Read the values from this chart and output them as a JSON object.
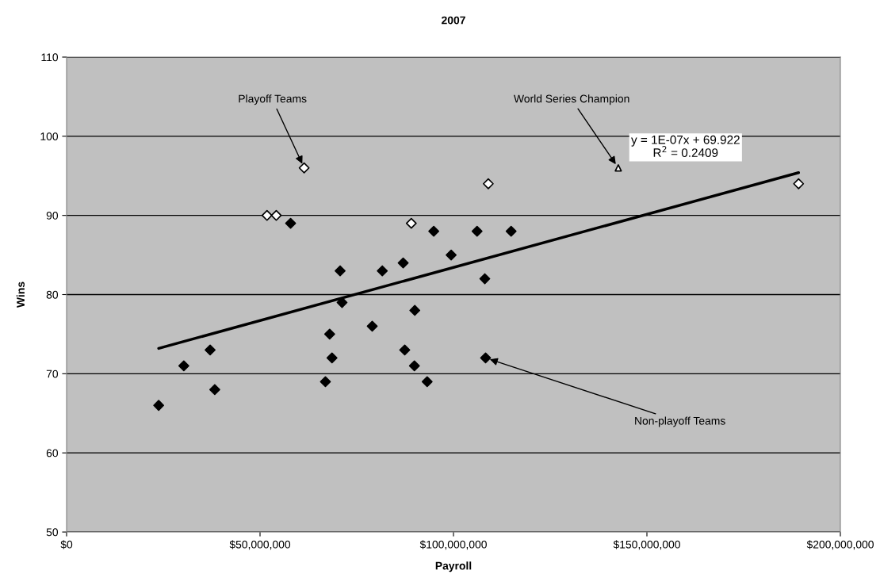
{
  "chart_data": {
    "type": "scatter",
    "title": "2007",
    "xlabel": "Payroll",
    "ylabel": "Wins",
    "xlim": [
      0,
      200000000
    ],
    "ylim": [
      50,
      110
    ],
    "xticks": [
      {
        "value": 0,
        "label": "$0"
      },
      {
        "value": 50000000,
        "label": "$50,000,000"
      },
      {
        "value": 100000000,
        "label": "$100,000,000"
      },
      {
        "value": 150000000,
        "label": "$150,000,000"
      },
      {
        "value": 200000000,
        "label": "$200,000,000"
      }
    ],
    "yticks": [
      50,
      60,
      70,
      80,
      90,
      100,
      110
    ],
    "grid": "y",
    "legend": false,
    "series": [
      {
        "marker": "diamond",
        "color": "#000000",
        "x": [
          23800000,
          30300000,
          37100000,
          38300000,
          57900000,
          66900000,
          68000000,
          68600000,
          70700000,
          71200000,
          79000000,
          81600000,
          87000000,
          87400000,
          89900000,
          90000000,
          93200000,
          94900000,
          99400000,
          106100000,
          108100000,
          108300000,
          114900000
        ],
        "values": [
          66,
          71,
          73,
          68,
          89,
          69,
          75,
          72,
          83,
          79,
          76,
          83,
          84,
          73,
          71,
          78,
          69,
          88,
          85,
          88,
          82,
          72,
          88
        ]
      },
      {
        "marker": "diamond",
        "color": "#ffffff",
        "x": [
          51800000,
          54200000,
          61400000,
          89100000,
          109000000,
          189200000
        ],
        "values": [
          90,
          90,
          96,
          89,
          94,
          94
        ]
      },
      {
        "marker": "triangle",
        "color": "#ffffff",
        "x": [
          142600000
        ],
        "values": [
          96
        ]
      },
      {
        "type": "line",
        "line_style": "solid",
        "color": "#000000",
        "x": [
          23800000,
          189200000
        ],
        "values": [
          73.2,
          95.4
        ]
      }
    ],
    "annotations": [
      {
        "text": "Playoff Teams",
        "x": 61400000,
        "y": 96
      },
      {
        "text": "World Series Champion",
        "x": 142600000,
        "y": 96
      },
      {
        "text": "Non-playoff Teams",
        "x": 108300000,
        "y": 72
      },
      "y = 1E-07x + 69.922\nR$^{2}$ = 0.2409"
    ]
  }
}
